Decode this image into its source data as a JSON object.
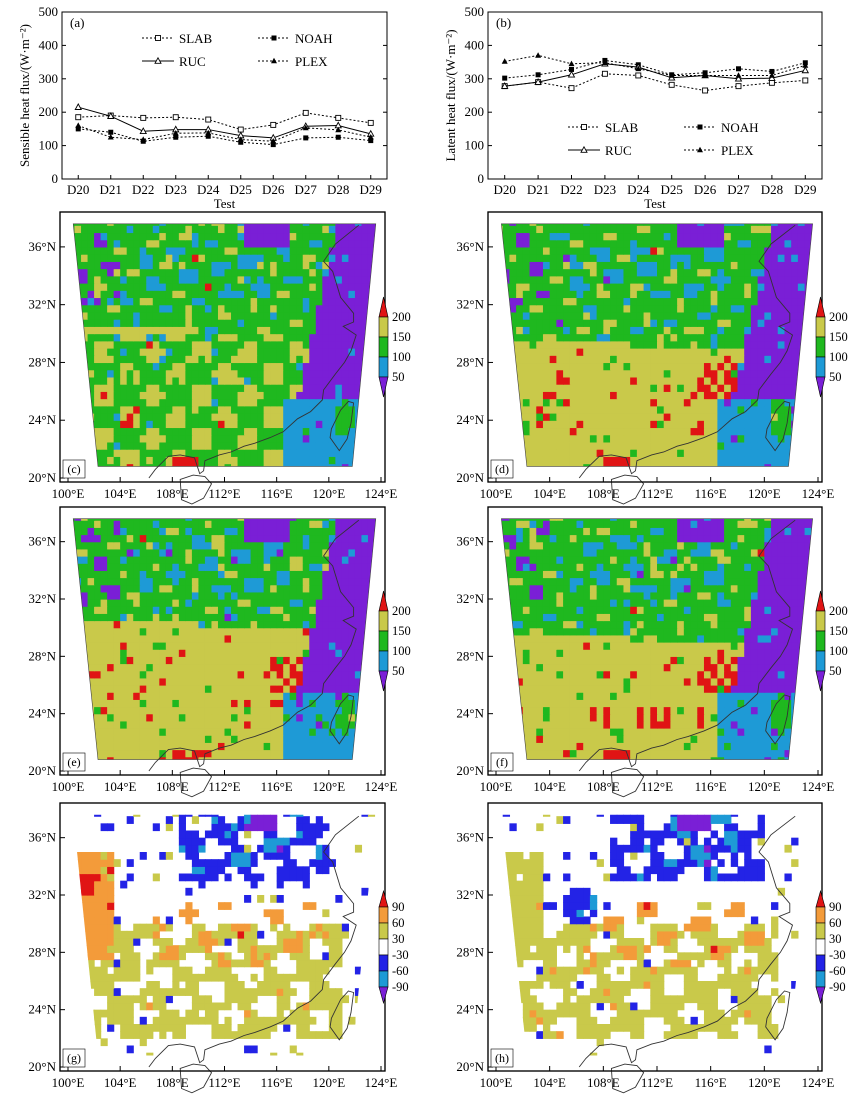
{
  "line_panels": [
    {
      "panel_label": "(a)",
      "ylabel": "Sensible heat flux/(W·m⁻²)",
      "xlabel": "Test",
      "legend": [
        "SLAB",
        "NOAH",
        "RUC",
        "PLEX"
      ]
    },
    {
      "panel_label": "(b)",
      "ylabel": "Latent heat flux/(W·m⁻²)",
      "xlabel": "Test",
      "legend": [
        "SLAB",
        "NOAH",
        "RUC",
        "PLEX"
      ]
    }
  ],
  "map_panels": [
    {
      "panel_label": "(c)",
      "colorbar": [
        "200",
        "150",
        "100",
        "50"
      ]
    },
    {
      "panel_label": "(d)",
      "colorbar": [
        "200",
        "150",
        "100",
        "50"
      ]
    },
    {
      "panel_label": "(e)",
      "colorbar": [
        "200",
        "150",
        "100",
        "50"
      ]
    },
    {
      "panel_label": "(f)",
      "colorbar": [
        "200",
        "150",
        "100",
        "50"
      ]
    },
    {
      "panel_label": "(g)",
      "colorbar": [
        "90",
        "60",
        "30",
        "-30",
        "-60",
        "-90"
      ]
    },
    {
      "panel_label": "(h)",
      "colorbar": [
        "90",
        "60",
        "30",
        "-30",
        "-60",
        "-90"
      ]
    }
  ],
  "map_axes": {
    "lat_labels": [
      "36°N",
      "32°N",
      "28°N",
      "24°N",
      "20°N"
    ],
    "lon_labels": [
      "100°E",
      "104°E",
      "108°E",
      "112°E",
      "116°E",
      "120°E",
      "124°E"
    ]
  },
  "colors": {
    "flux_levels": [
      "#7a1fd6",
      "#1e9ad6",
      "#1fb81f",
      "#c9c94a",
      "#e01414"
    ],
    "diff_levels": [
      "#7a1fd6",
      "#1e9ad6",
      "#2323e6",
      "#ffffff",
      "#c9c94a",
      "#f39b3a",
      "#e01414"
    ]
  },
  "chart_data": [
    {
      "type": "line",
      "title": "(a)",
      "xlabel": "Test",
      "ylabel": "Sensible heat flux/(W·m⁻²)",
      "categories": [
        "D20",
        "D21",
        "D22",
        "D23",
        "D24",
        "D25",
        "D26",
        "D27",
        "D28",
        "D29"
      ],
      "ylim": [
        0,
        500
      ],
      "yticks": [
        0,
        100,
        200,
        300,
        400,
        500
      ],
      "legend_position": "top",
      "series": [
        {
          "name": "SLAB",
          "values": [
            185,
            190,
            183,
            185,
            178,
            148,
            162,
            198,
            183,
            168
          ]
        },
        {
          "name": "NOAH",
          "values": [
            150,
            140,
            113,
            125,
            128,
            110,
            103,
            123,
            125,
            115
          ]
        },
        {
          "name": "RUC",
          "values": [
            215,
            188,
            143,
            148,
            148,
            130,
            123,
            158,
            160,
            135
          ]
        },
        {
          "name": "PLEX",
          "values": [
            160,
            125,
            118,
            137,
            138,
            118,
            113,
            153,
            147,
            125
          ]
        }
      ]
    },
    {
      "type": "line",
      "title": "(b)",
      "xlabel": "Test",
      "ylabel": "Latent heat flux/(W·m⁻²)",
      "categories": [
        "D20",
        "D21",
        "D22",
        "D23",
        "D24",
        "D25",
        "D26",
        "D27",
        "D28",
        "D29"
      ],
      "ylim": [
        0,
        500
      ],
      "yticks": [
        0,
        100,
        200,
        300,
        400,
        500
      ],
      "legend_position": "bottom",
      "series": [
        {
          "name": "SLAB",
          "values": [
            278,
            290,
            272,
            315,
            310,
            282,
            265,
            278,
            288,
            295
          ]
        },
        {
          "name": "NOAH",
          "values": [
            302,
            312,
            328,
            355,
            342,
            312,
            318,
            330,
            322,
            348
          ]
        },
        {
          "name": "RUC",
          "values": [
            278,
            290,
            312,
            345,
            335,
            303,
            310,
            300,
            302,
            325
          ]
        },
        {
          "name": "PLEX",
          "values": [
            352,
            370,
            345,
            348,
            330,
            310,
            310,
            310,
            310,
            340
          ]
        }
      ]
    }
  ]
}
